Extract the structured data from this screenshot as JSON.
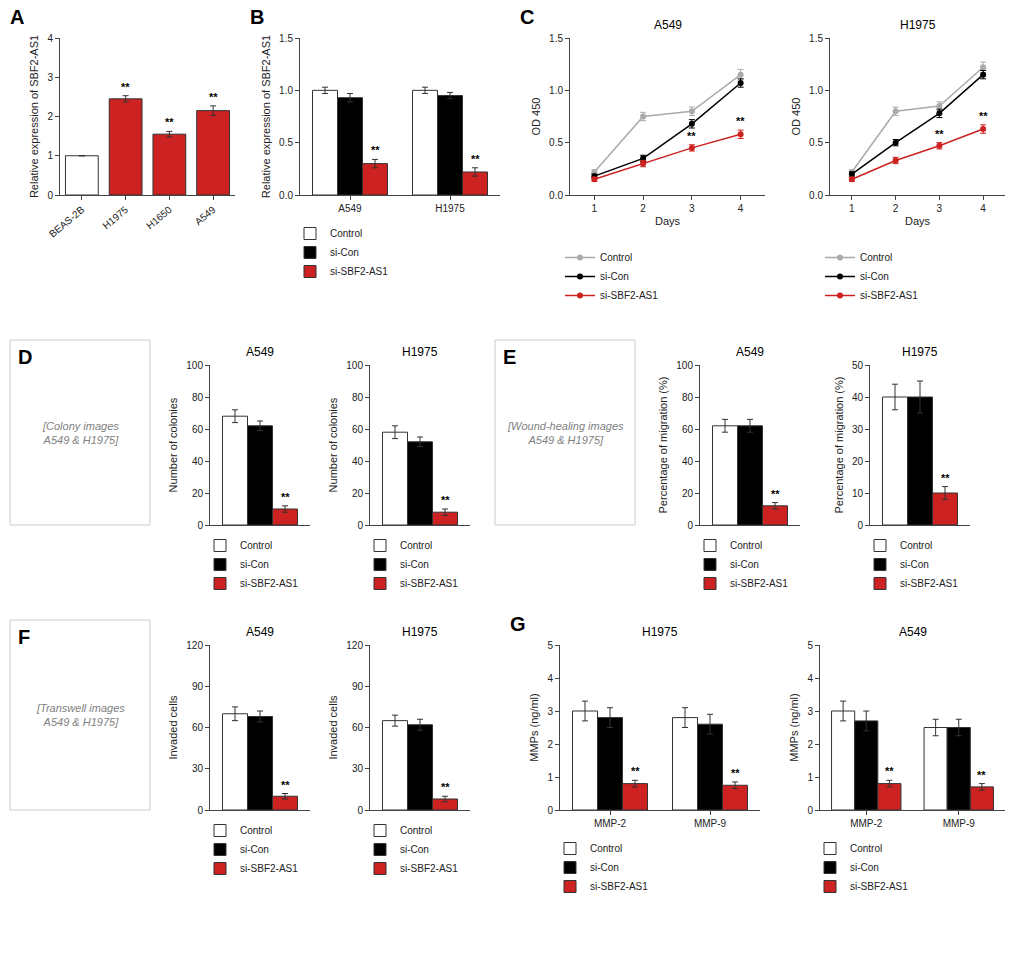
{
  "chart_data": [
    {
      "type": "bar",
      "categories": [
        "BEAS-2B",
        "H1975",
        "H1650",
        "A549"
      ],
      "values": [
        1.0,
        2.45,
        1.55,
        2.15
      ],
      "errors": [
        0.0,
        0.08,
        0.07,
        0.12
      ],
      "colors": [
        "white",
        "#cc2222",
        "#cc2222",
        "#cc2222"
      ],
      "significance": [
        null,
        "**",
        "**",
        "**"
      ],
      "ylabel": "Relative expression of SBF2-AS1",
      "ylim": [
        0,
        4
      ],
      "yticks": [
        0,
        1,
        2,
        3,
        4
      ],
      "grid": false,
      "annotations": [
        "A"
      ]
    },
    {
      "type": "bar",
      "categories": [
        "A549",
        "H1975"
      ],
      "series": [
        {
          "name": "Control",
          "color": "white",
          "values": [
            1.0,
            1.0
          ],
          "errors": [
            0.03,
            0.03
          ]
        },
        {
          "name": "si-Con",
          "color": "black",
          "values": [
            0.93,
            0.95
          ],
          "errors": [
            0.04,
            0.03
          ]
        },
        {
          "name": "si-SBF2-AS1",
          "color": "#cc2222",
          "values": [
            0.3,
            0.22
          ],
          "errors": [
            0.04,
            0.04
          ],
          "significance": [
            "**",
            "**"
          ]
        }
      ],
      "ylabel": "Relative expression of SBF2-AS1",
      "ylim": [
        0,
        1.5
      ],
      "yticks": [
        {
          "value": 0,
          "label": "0.0"
        },
        0.5,
        {
          "value": 1,
          "label": "1.0"
        },
        1.5
      ],
      "grid": false,
      "legend": "bottom",
      "annotations": [
        "B"
      ]
    },
    {
      "type": "line",
      "title": "A549",
      "xlabel": "Days",
      "ylabel": "OD 450",
      "x": [
        1,
        2,
        3,
        4
      ],
      "xlim": [
        0.5,
        4.5
      ],
      "xticks": [
        1,
        2,
        3,
        4
      ],
      "series": [
        {
          "name": "Control",
          "color": "#aaaaaa",
          "marker": "circle",
          "values": [
            0.22,
            0.75,
            0.8,
            1.15
          ],
          "errors": [
            0.02,
            0.04,
            0.04,
            0.05
          ]
        },
        {
          "name": "si-Con",
          "color": "black",
          "marker": "circle",
          "values": [
            0.18,
            0.35,
            0.68,
            1.07
          ],
          "errors": [
            0.02,
            0.03,
            0.04,
            0.04
          ]
        },
        {
          "name": "si-SBF2-AS1",
          "color": "#cc2222",
          "marker": "circle",
          "values": [
            0.15,
            0.3,
            0.45,
            0.58
          ],
          "errors": [
            0.02,
            0.03,
            0.03,
            0.04
          ],
          "significance": [
            null,
            null,
            "**",
            "**"
          ]
        }
      ],
      "ylim": [
        0,
        1.5
      ],
      "yticks": [
        {
          "value": 0,
          "label": "0.0"
        },
        0.5,
        {
          "value": 1,
          "label": "1.0"
        },
        1.5
      ],
      "grid": false,
      "legend": "bottom",
      "annotations": [
        "C"
      ]
    },
    {
      "type": "line",
      "title": "H1975",
      "xlabel": "Days",
      "ylabel": "OD 450",
      "x": [
        1,
        2,
        3,
        4
      ],
      "xlim": [
        0.5,
        4.5
      ],
      "xticks": [
        1,
        2,
        3,
        4
      ],
      "series": [
        {
          "name": "Control",
          "color": "#aaaaaa",
          "marker": "circle",
          "values": [
            0.22,
            0.8,
            0.85,
            1.22
          ],
          "errors": [
            0.02,
            0.04,
            0.04,
            0.05
          ]
        },
        {
          "name": "si-Con",
          "color": "black",
          "marker": "circle",
          "values": [
            0.2,
            0.5,
            0.78,
            1.15
          ],
          "errors": [
            0.02,
            0.03,
            0.04,
            0.04
          ]
        },
        {
          "name": "si-SBF2-AS1",
          "color": "#cc2222",
          "marker": "circle",
          "values": [
            0.15,
            0.33,
            0.47,
            0.63
          ],
          "errors": [
            0.02,
            0.03,
            0.03,
            0.04
          ],
          "significance": [
            null,
            null,
            "**",
            "**"
          ]
        }
      ],
      "ylim": [
        0,
        1.5
      ],
      "yticks": [
        {
          "value": 0,
          "label": "0.0"
        },
        0.5,
        {
          "value": 1,
          "label": "1.0"
        },
        1.5
      ],
      "grid": false,
      "legend": "bottom"
    },
    {
      "type": "placeholder",
      "annotations": [
        "D",
        "[Colony images\nA549 & H1975]"
      ]
    },
    {
      "type": "bar",
      "title": "A549",
      "ylabel": "Number of colonies",
      "categories": [
        null
      ],
      "series": [
        {
          "name": "Control",
          "color": "white",
          "values": [
            68
          ],
          "errors": [
            4
          ]
        },
        {
          "name": "si-Con",
          "color": "black",
          "values": [
            62
          ],
          "errors": [
            3
          ]
        },
        {
          "name": "si-SBF2-AS1",
          "color": "#cc2222",
          "values": [
            10
          ],
          "errors": [
            2
          ],
          "significance": [
            "**"
          ]
        }
      ],
      "ylim": [
        0,
        100
      ],
      "yticks": [
        0,
        20,
        40,
        60,
        80,
        100
      ],
      "grid": false,
      "legend": "bottom",
      "tick_labels": "y"
    },
    {
      "type": "bar",
      "title": "H1975",
      "ylabel": "Number of colonies",
      "categories": [
        null
      ],
      "series": [
        {
          "name": "Control",
          "color": "white",
          "values": [
            58
          ],
          "errors": [
            4
          ]
        },
        {
          "name": "si-Con",
          "color": "black",
          "values": [
            52
          ],
          "errors": [
            3
          ]
        },
        {
          "name": "si-SBF2-AS1",
          "color": "#cc2222",
          "values": [
            8
          ],
          "errors": [
            2
          ],
          "significance": [
            "**"
          ]
        }
      ],
      "ylim": [
        0,
        100
      ],
      "yticks": [
        0,
        20,
        40,
        60,
        80,
        100
      ],
      "grid": false,
      "legend": "bottom",
      "tick_labels": "y"
    },
    {
      "type": "placeholder",
      "annotations": [
        "E",
        "[Wound-healing images\nA549 & H1975]"
      ]
    },
    {
      "type": "bar",
      "title": "A549",
      "ylabel": "Percentage of migration (%)",
      "categories": [
        null
      ],
      "series": [
        {
          "name": "Control",
          "color": "white",
          "values": [
            62
          ],
          "errors": [
            4
          ]
        },
        {
          "name": "si-Con",
          "color": "black",
          "values": [
            62
          ],
          "errors": [
            4
          ]
        },
        {
          "name": "si-SBF2-AS1",
          "color": "#cc2222",
          "values": [
            12
          ],
          "errors": [
            2
          ],
          "significance": [
            "**"
          ]
        }
      ],
      "ylim": [
        0,
        100
      ],
      "yticks": [
        0,
        20,
        40,
        60,
        80,
        100
      ],
      "grid": false,
      "legend": "bottom",
      "tick_labels": "y"
    },
    {
      "type": "bar",
      "title": "H1975",
      "ylabel": "Percentage of migration (%)",
      "categories": [
        null
      ],
      "series": [
        {
          "name": "Control",
          "color": "white",
          "values": [
            40
          ],
          "errors": [
            4
          ]
        },
        {
          "name": "si-Con",
          "color": "black",
          "values": [
            40
          ],
          "errors": [
            5
          ]
        },
        {
          "name": "si-SBF2-AS1",
          "color": "#cc2222",
          "values": [
            10
          ],
          "errors": [
            2
          ],
          "significance": [
            "**"
          ]
        }
      ],
      "ylim": [
        0,
        50
      ],
      "yticks": [
        0,
        10,
        20,
        30,
        40,
        50
      ],
      "grid": false,
      "legend": "bottom",
      "tick_labels": "y"
    },
    {
      "type": "placeholder",
      "annotations": [
        "F",
        "[Transwell images\nA549 & H1975]"
      ]
    },
    {
      "type": "bar",
      "title": "A549",
      "ylabel": "Invaded cells",
      "categories": [
        null
      ],
      "series": [
        {
          "name": "Control",
          "color": "white",
          "values": [
            70
          ],
          "errors": [
            5
          ]
        },
        {
          "name": "si-Con",
          "color": "black",
          "values": [
            68
          ],
          "errors": [
            4
          ]
        },
        {
          "name": "si-SBF2-AS1",
          "color": "#cc2222",
          "values": [
            10
          ],
          "errors": [
            2
          ],
          "significance": [
            "**"
          ]
        }
      ],
      "ylim": [
        0,
        120
      ],
      "yticks": [
        0,
        30,
        60,
        90,
        120
      ],
      "grid": false,
      "legend": "bottom",
      "tick_labels": "y"
    },
    {
      "type": "bar",
      "title": "H1975",
      "ylabel": "Invaded cells",
      "categories": [
        null
      ],
      "series": [
        {
          "name": "Control",
          "color": "white",
          "values": [
            65
          ],
          "errors": [
            4
          ]
        },
        {
          "name": "si-Con",
          "color": "black",
          "values": [
            62
          ],
          "errors": [
            4
          ]
        },
        {
          "name": "si-SBF2-AS1",
          "color": "#cc2222",
          "values": [
            8
          ],
          "errors": [
            2
          ],
          "significance": [
            "**"
          ]
        }
      ],
      "ylim": [
        0,
        120
      ],
      "yticks": [
        0,
        30,
        60,
        90,
        120
      ],
      "grid": false,
      "legend": "bottom",
      "tick_labels": "y"
    },
    {
      "type": "bar",
      "title": "H1975",
      "ylabel": "MMPs (ng/ml)",
      "categories": [
        "MMP-2",
        "MMP-9"
      ],
      "series": [
        {
          "name": "Control",
          "color": "white",
          "values": [
            3.0,
            2.8
          ],
          "errors": [
            0.3,
            0.3
          ]
        },
        {
          "name": "si-Con",
          "color": "black",
          "values": [
            2.8,
            2.6
          ],
          "errors": [
            0.3,
            0.3
          ]
        },
        {
          "name": "si-SBF2-AS1",
          "color": "#cc2222",
          "values": [
            0.8,
            0.75
          ],
          "errors": [
            0.1,
            0.1
          ],
          "significance": [
            "**",
            "**"
          ]
        }
      ],
      "ylim": [
        0,
        5
      ],
      "yticks": [
        0,
        1,
        2,
        3,
        4,
        5
      ],
      "grid": false,
      "legend": "bottom",
      "annotations": [
        "G"
      ]
    },
    {
      "type": "bar",
      "title": "A549",
      "ylabel": "MMPs (ng/ml)",
      "categories": [
        "MMP-2",
        "MMP-9"
      ],
      "series": [
        {
          "name": "Control",
          "color": "white",
          "values": [
            3.0,
            2.5
          ],
          "errors": [
            0.3,
            0.25
          ]
        },
        {
          "name": "si-Con",
          "color": "black",
          "values": [
            2.7,
            2.5
          ],
          "errors": [
            0.3,
            0.25
          ]
        },
        {
          "name": "si-SBF2-AS1",
          "color": "#cc2222",
          "values": [
            0.8,
            0.7
          ],
          "errors": [
            0.1,
            0.1
          ],
          "significance": [
            "**",
            "**"
          ]
        }
      ],
      "ylim": [
        0,
        5
      ],
      "yticks": [
        0,
        1,
        2,
        3,
        4,
        5
      ],
      "grid": false,
      "legend": "bottom"
    }
  ]
}
